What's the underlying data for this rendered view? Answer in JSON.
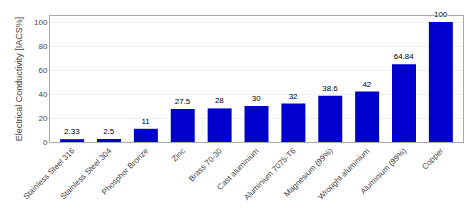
{
  "chart_data": {
    "type": "bar",
    "categories": [
      "Stainless Steel 316",
      "Stainless Steel 304",
      "Phosphor Bronze",
      "Zinc",
      "Brass 70-30",
      "Cast aluminium",
      "Aluminium 7075-T6",
      "Magnesium (99%)",
      "Wrought aluminium",
      "Aluminium (99%)",
      "Copper"
    ],
    "values": [
      2.33,
      2.5,
      11,
      27.5,
      28,
      30,
      32,
      38.6,
      42,
      64.84,
      100
    ],
    "color": "#0000CC",
    "ylabel": "Electrical Conductivity [IACS%]",
    "ylim": [
      0,
      105
    ],
    "yticks": [
      0,
      20,
      40,
      60,
      80,
      100
    ],
    "grid": true,
    "data_labels": true
  }
}
